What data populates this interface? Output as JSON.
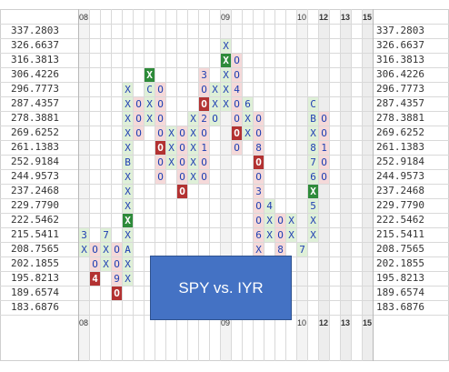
{
  "chart_data": {
    "type": "point-and-figure",
    "title": "SPY vs. IYR",
    "price_levels": [
      "337.2803",
      "326.6637",
      "316.3813",
      "306.4226",
      "296.7773",
      "287.4357",
      "278.3881",
      "269.6252",
      "261.1383",
      "252.9184",
      "244.9573",
      "237.2468",
      "229.7790",
      "222.5462",
      "215.5411",
      "208.7565",
      "202.1855",
      "195.8213",
      "189.6574",
      "183.6876"
    ],
    "year_labels": [
      {
        "label": "08",
        "col": 0,
        "bold": false
      },
      {
        "label": "09",
        "col": 13,
        "bold": false
      },
      {
        "label": "10",
        "col": 20,
        "bold": false
      },
      {
        "label": "12",
        "col": 22,
        "bold": true
      },
      {
        "label": "13",
        "col": 24,
        "bold": true
      },
      {
        "label": "15",
        "col": 26,
        "bold": true
      }
    ],
    "columns": [
      {
        "col": 0,
        "cells": [
          {
            "r": 14,
            "s": "3"
          },
          {
            "r": 15,
            "s": "X"
          }
        ]
      },
      {
        "col": 1,
        "cells": [
          {
            "r": 15,
            "s": "O"
          },
          {
            "r": 16,
            "s": "O"
          },
          {
            "r": 17,
            "s": "4",
            "hl": true
          }
        ]
      },
      {
        "col": 2,
        "cells": [
          {
            "r": 14,
            "s": "7"
          },
          {
            "r": 15,
            "s": "X"
          },
          {
            "r": 16,
            "s": "X"
          }
        ]
      },
      {
        "col": 3,
        "cells": [
          {
            "r": 15,
            "s": "O"
          },
          {
            "r": 16,
            "s": "O"
          },
          {
            "r": 17,
            "s": "9"
          },
          {
            "r": 18,
            "s": "O",
            "hl": true
          }
        ]
      },
      {
        "col": 4,
        "cells": [
          {
            "r": 4,
            "s": "X"
          },
          {
            "r": 5,
            "s": "X"
          },
          {
            "r": 6,
            "s": "X"
          },
          {
            "r": 7,
            "s": "X"
          },
          {
            "r": 8,
            "s": "X"
          },
          {
            "r": 9,
            "s": "B"
          },
          {
            "r": 10,
            "s": "X"
          },
          {
            "r": 11,
            "s": "X"
          },
          {
            "r": 12,
            "s": "X"
          },
          {
            "r": 13,
            "s": "X",
            "hl": true
          },
          {
            "r": 14,
            "s": "X"
          },
          {
            "r": 15,
            "s": "A"
          },
          {
            "r": 16,
            "s": "X"
          },
          {
            "r": 17,
            "s": "X"
          }
        ]
      },
      {
        "col": 5,
        "cells": [
          {
            "r": 5,
            "s": "O"
          },
          {
            "r": 6,
            "s": "O"
          },
          {
            "r": 7,
            "s": "O"
          }
        ]
      },
      {
        "col": 6,
        "cells": [
          {
            "r": 3,
            "s": "X",
            "hl": true
          },
          {
            "r": 4,
            "s": "C"
          },
          {
            "r": 5,
            "s": "X"
          },
          {
            "r": 6,
            "s": "X"
          }
        ]
      },
      {
        "col": 7,
        "cells": [
          {
            "r": 4,
            "s": "O"
          },
          {
            "r": 5,
            "s": "O"
          },
          {
            "r": 6,
            "s": "O"
          },
          {
            "r": 7,
            "s": "O"
          },
          {
            "r": 8,
            "s": "O",
            "hl": true
          },
          {
            "r": 9,
            "s": "O"
          },
          {
            "r": 10,
            "s": "O"
          }
        ]
      },
      {
        "col": 8,
        "cells": [
          {
            "r": 7,
            "s": "X"
          },
          {
            "r": 8,
            "s": "X"
          },
          {
            "r": 9,
            "s": "X"
          }
        ]
      },
      {
        "col": 9,
        "cells": [
          {
            "r": 7,
            "s": "O"
          },
          {
            "r": 8,
            "s": "O"
          },
          {
            "r": 9,
            "s": "O"
          },
          {
            "r": 10,
            "s": "O"
          },
          {
            "r": 11,
            "s": "O",
            "hl": true
          }
        ]
      },
      {
        "col": 10,
        "cells": [
          {
            "r": 6,
            "s": "X"
          },
          {
            "r": 7,
            "s": "X"
          },
          {
            "r": 8,
            "s": "X"
          },
          {
            "r": 9,
            "s": "X"
          },
          {
            "r": 10,
            "s": "X"
          }
        ]
      },
      {
        "col": 11,
        "cells": [
          {
            "r": 3,
            "s": "3"
          },
          {
            "r": 4,
            "s": "O"
          },
          {
            "r": 5,
            "s": "O",
            "hl": true
          },
          {
            "r": 6,
            "s": "2"
          },
          {
            "r": 7,
            "s": "O"
          },
          {
            "r": 8,
            "s": "1"
          },
          {
            "r": 9,
            "s": "O"
          },
          {
            "r": 10,
            "s": "O"
          }
        ]
      },
      {
        "col": 12,
        "cells": [
          {
            "r": 4,
            "s": "X"
          },
          {
            "r": 5,
            "s": "X"
          },
          {
            "r": 6,
            "s": "O"
          }
        ]
      },
      {
        "col": 13,
        "cells": [
          {
            "r": 1,
            "s": "X"
          },
          {
            "r": 2,
            "s": "X",
            "hl": true
          },
          {
            "r": 3,
            "s": "X"
          },
          {
            "r": 4,
            "s": "X"
          },
          {
            "r": 5,
            "s": "X"
          }
        ]
      },
      {
        "col": 14,
        "cells": [
          {
            "r": 2,
            "s": "O"
          },
          {
            "r": 3,
            "s": "O"
          },
          {
            "r": 4,
            "s": "4"
          },
          {
            "r": 5,
            "s": "O"
          },
          {
            "r": 6,
            "s": "O"
          },
          {
            "r": 7,
            "s": "O",
            "hl": true
          },
          {
            "r": 8,
            "s": "O"
          }
        ]
      },
      {
        "col": 15,
        "cells": [
          {
            "r": 5,
            "s": "6"
          },
          {
            "r": 6,
            "s": "X"
          },
          {
            "r": 7,
            "s": "X"
          }
        ]
      },
      {
        "col": 16,
        "cells": [
          {
            "r": 6,
            "s": "O"
          },
          {
            "r": 7,
            "s": "O"
          },
          {
            "r": 8,
            "s": "8"
          },
          {
            "r": 9,
            "s": "O",
            "hl": true
          },
          {
            "r": 10,
            "s": "O"
          },
          {
            "r": 11,
            "s": "3"
          },
          {
            "r": 12,
            "s": "O"
          },
          {
            "r": 13,
            "s": "O"
          },
          {
            "r": 14,
            "s": "6"
          },
          {
            "r": 15,
            "s": "X"
          }
        ]
      },
      {
        "col": 17,
        "cells": [
          {
            "r": 12,
            "s": "4"
          },
          {
            "r": 13,
            "s": "X"
          },
          {
            "r": 14,
            "s": "X"
          }
        ]
      },
      {
        "col": 18,
        "cells": [
          {
            "r": 13,
            "s": "O"
          },
          {
            "r": 14,
            "s": "O"
          },
          {
            "r": 15,
            "s": "8"
          }
        ]
      },
      {
        "col": 19,
        "cells": [
          {
            "r": 13,
            "s": "X"
          },
          {
            "r": 14,
            "s": "X"
          }
        ]
      },
      {
        "col": 20,
        "cells": [
          {
            "r": 15,
            "s": "7"
          }
        ]
      },
      {
        "col": 21,
        "cells": [
          {
            "r": 5,
            "s": "C"
          },
          {
            "r": 6,
            "s": "B"
          },
          {
            "r": 7,
            "s": "X"
          },
          {
            "r": 8,
            "s": "8"
          },
          {
            "r": 9,
            "s": "7"
          },
          {
            "r": 10,
            "s": "6"
          },
          {
            "r": 11,
            "s": "X",
            "hl": true
          },
          {
            "r": 12,
            "s": "5"
          },
          {
            "r": 13,
            "s": "X"
          },
          {
            "r": 14,
            "s": "X"
          }
        ]
      },
      {
        "col": 22,
        "cells": [
          {
            "r": 6,
            "s": "O"
          },
          {
            "r": 7,
            "s": "O"
          },
          {
            "r": 8,
            "s": "1"
          },
          {
            "r": 9,
            "s": "O"
          },
          {
            "r": 10,
            "s": "O"
          }
        ]
      }
    ],
    "colors": {
      "x_fill": "#dff0d8",
      "o_fill": "#f5d9d9",
      "x_signal": "#2e8b3a",
      "o_signal": "#b33232",
      "symbol": "#1f3fb2",
      "grid": "#d9d9d9"
    }
  },
  "overlay": {
    "label": "SPY vs. IYR"
  }
}
